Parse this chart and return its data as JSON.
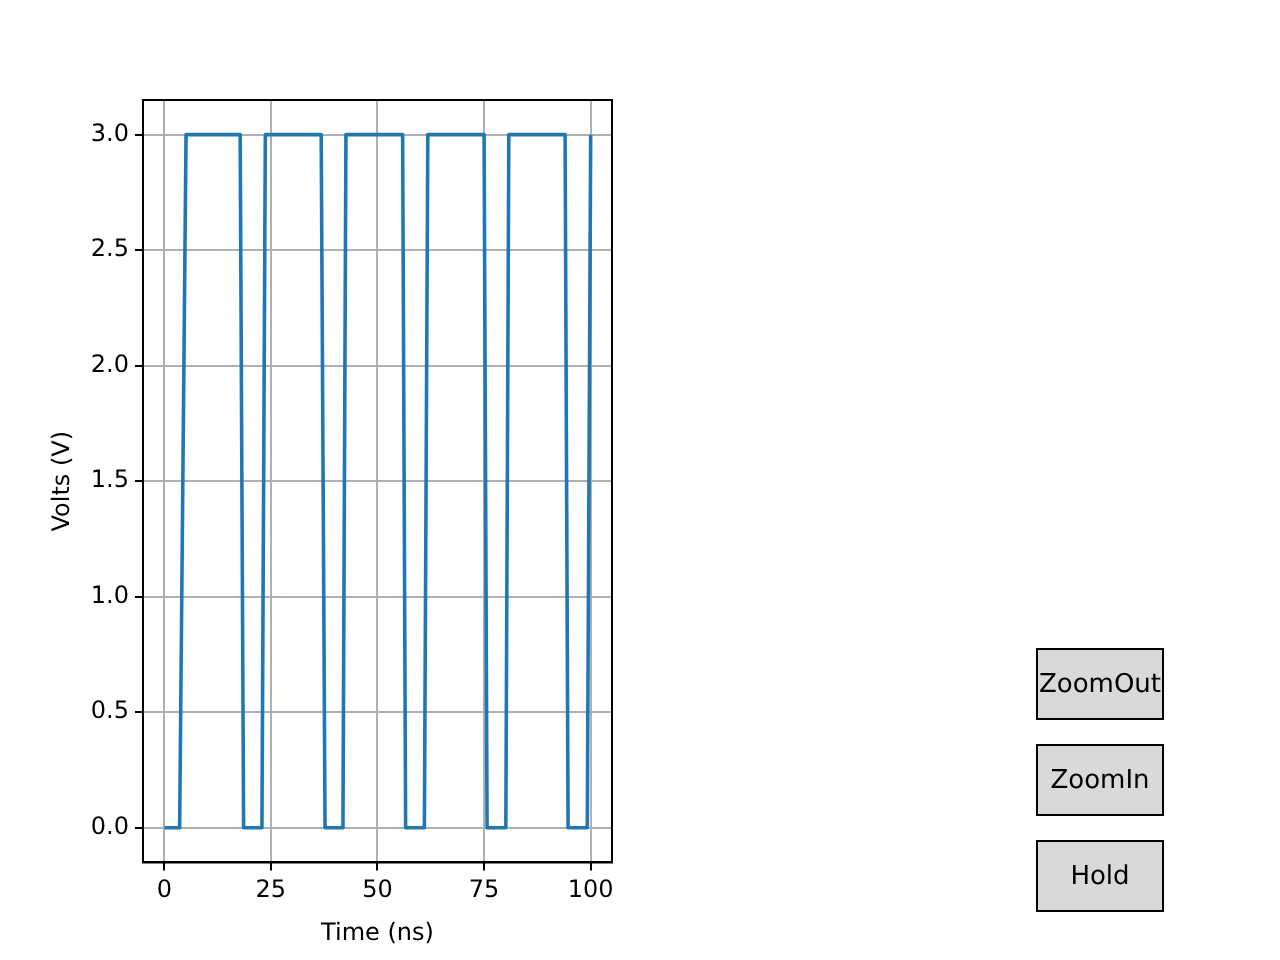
{
  "chart_data": {
    "type": "line",
    "xlabel": "Time (ns)",
    "ylabel": "Volts (V)",
    "series": [
      {
        "color": "#1f77b4",
        "x": [
          0,
          3.6,
          5.1,
          17.8,
          18.6,
          22.9,
          23.7,
          36.8,
          37.7,
          41.9,
          42.6,
          55.9,
          56.6,
          61.0,
          61.8,
          75.0,
          75.7,
          80.1,
          80.8,
          94.0,
          94.7,
          99.2,
          100
        ],
        "values": [
          0,
          0,
          3,
          3,
          0,
          0,
          3,
          3,
          0,
          0,
          3,
          3,
          0,
          0,
          3,
          3,
          0,
          0,
          3,
          3,
          0,
          0,
          3
        ]
      }
    ],
    "xlim": [
      -5,
      105
    ],
    "xticks": [
      0,
      25,
      50,
      75,
      100
    ],
    "ylim": [
      -0.15,
      3.15
    ],
    "yticks": [
      {
        "value": 0,
        "label": "0.0"
      },
      {
        "value": 0.5,
        "label": "0.5"
      },
      {
        "value": 1,
        "label": "1.0"
      },
      {
        "value": 1.5,
        "label": "1.5"
      },
      {
        "value": 2,
        "label": "2.0"
      },
      {
        "value": 2.5,
        "label": "2.5"
      },
      {
        "value": 3,
        "label": "3.0"
      }
    ],
    "grid": true,
    "legend": false,
    "marker": "none",
    "line_style": "solid",
    "annotations": [
      "ZoomOut",
      "ZoomIn",
      "Hold"
    ]
  }
}
